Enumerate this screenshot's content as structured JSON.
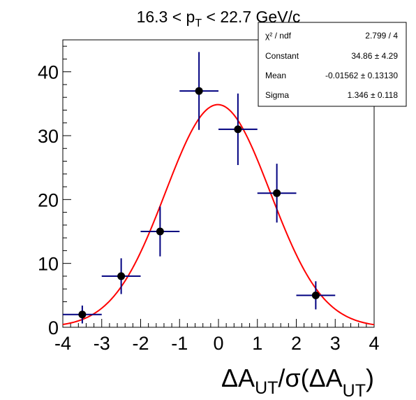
{
  "chart_data": {
    "type": "scatter",
    "title": {
      "main": "16.3 < p",
      "sub": "T",
      "rest": " < 22.7 GeV/c"
    },
    "xlabel": {
      "prefix": "ΔA",
      "sub1": "UT",
      "middle": "/σ(ΔA",
      "sub2": "UT",
      "suffix": ")"
    },
    "ylabel": "",
    "xlim": [
      -4,
      4
    ],
    "ylim": [
      0,
      45
    ],
    "x_ticks": [
      -4,
      -3,
      -2,
      -1,
      0,
      1,
      2,
      3,
      4
    ],
    "y_ticks": [
      0,
      10,
      20,
      30,
      40
    ],
    "points": [
      {
        "x": -3.5,
        "y": 2,
        "xerr": 0.5,
        "yerr": 1.4
      },
      {
        "x": -2.5,
        "y": 8,
        "xerr": 0.5,
        "yerr": 2.8
      },
      {
        "x": -1.5,
        "y": 15,
        "xerr": 0.5,
        "yerr": 3.9
      },
      {
        "x": -0.5,
        "y": 37,
        "xerr": 0.5,
        "yerr": 6.1
      },
      {
        "x": 0.5,
        "y": 31,
        "xerr": 0.5,
        "yerr": 5.6
      },
      {
        "x": 1.5,
        "y": 21,
        "xerr": 0.5,
        "yerr": 4.6
      },
      {
        "x": 2.5,
        "y": 5,
        "xerr": 0.5,
        "yerr": 2.2
      }
    ],
    "fit": {
      "function": "gaus",
      "constant": 34.86,
      "mean": -0.01562,
      "sigma": 1.346,
      "color": "#ff0000"
    },
    "marker_color": "#000000",
    "error_color": "#000080",
    "stats_box": {
      "rows": [
        {
          "label": "χ² / ndf",
          "value": "2.799 / 4"
        },
        {
          "label": "Constant",
          "value": "34.86  ± 4.29"
        },
        {
          "label": "Mean",
          "value": "-0.01562  ± 0.13130"
        },
        {
          "label": "Sigma",
          "value": "1.346  ± 0.118"
        }
      ]
    }
  }
}
